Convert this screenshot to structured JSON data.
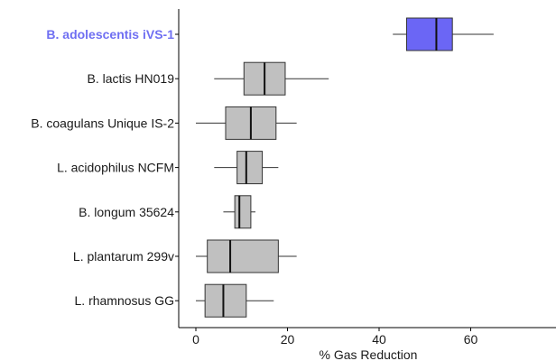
{
  "chart_data": {
    "type": "box",
    "orientation": "horizontal",
    "title": "",
    "xlabel": "% Gas Reduction",
    "ylabel": "",
    "xlim": [
      -4,
      78
    ],
    "xticks": [
      0,
      20,
      40,
      60
    ],
    "grid": false,
    "legend": "none",
    "colors": {
      "default_box": "#c0c0c0",
      "highlight_box": "#6b66f5",
      "highlight_label": "#6f6ff2",
      "stroke": "#333333"
    },
    "categories": [
      "B. adolescentis iVS-1",
      "B. lactis HN019",
      "B. coagulans Unique IS-2",
      "L. acidophilus NCFM",
      "B. longum 35624",
      "L. plantarum 299v",
      "L. rhamnosus GG"
    ],
    "highlight": "B. adolescentis iVS-1",
    "boxes": [
      {
        "category": "B. adolescentis iVS-1",
        "whisker_low": 43,
        "q1": 46,
        "median": 52.5,
        "q3": 56,
        "whisker_high": 65
      },
      {
        "category": "B. lactis HN019",
        "whisker_low": 4,
        "q1": 10.5,
        "median": 15,
        "q3": 19.5,
        "whisker_high": 29
      },
      {
        "category": "B. coagulans Unique IS-2",
        "whisker_low": 0,
        "q1": 6.5,
        "median": 12,
        "q3": 17.5,
        "whisker_high": 22
      },
      {
        "category": "L. acidophilus NCFM",
        "whisker_low": 4,
        "q1": 9,
        "median": 11,
        "q3": 14.5,
        "whisker_high": 18
      },
      {
        "category": "B. longum 35624",
        "whisker_low": 6,
        "q1": 8.5,
        "median": 9.5,
        "q3": 12,
        "whisker_high": 13
      },
      {
        "category": "L. plantarum 299v",
        "whisker_low": 0,
        "q1": 2.5,
        "median": 7.5,
        "q3": 18,
        "whisker_high": 22
      },
      {
        "category": "L. rhamnosus GG",
        "whisker_low": 0,
        "q1": 2,
        "median": 6,
        "q3": 11,
        "whisker_high": 17
      }
    ]
  }
}
